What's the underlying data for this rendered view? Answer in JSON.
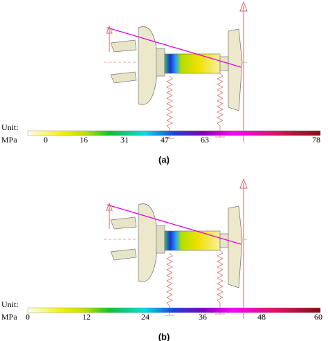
{
  "panels": [
    {
      "unit_label": "Unit:",
      "unit": "MPa",
      "colorbar_ticks": [
        0,
        16,
        31,
        47,
        63,
        78
      ],
      "caption": "(a)"
    },
    {
      "unit_label": "Unit:",
      "unit": "MPa",
      "colorbar_ticks": [
        0,
        12,
        24,
        36,
        48,
        60
      ],
      "caption": "(b)"
    }
  ]
}
